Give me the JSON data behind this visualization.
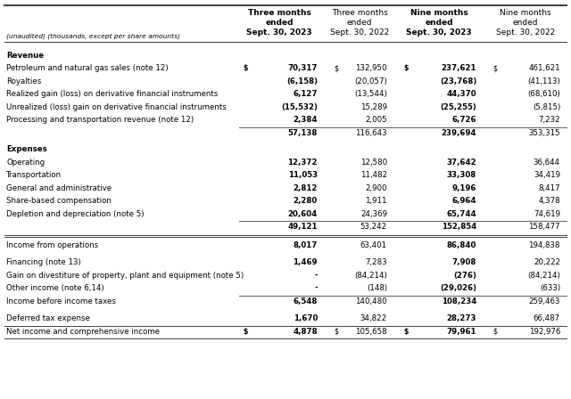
{
  "title_line1": "(unaudited) (thousands, except per share amounts)",
  "col_headers": [
    [
      "Three months",
      "ended",
      "Sept. 30, 2023"
    ],
    [
      "Three months",
      "ended",
      "Sept. 30, 2022"
    ],
    [
      "Nine months",
      "ended",
      "Sept. 30, 2023"
    ],
    [
      "Nine months",
      "ended",
      "Sept. 30, 2022"
    ]
  ],
  "col_bold": [
    true,
    false,
    true,
    false
  ],
  "rows": [
    {
      "type": "section",
      "label": "Revenue"
    },
    {
      "label": "Petroleum and natural gas sales (note 12)",
      "v": [
        "70,317",
        "132,950",
        "237,621",
        "461,621"
      ],
      "bold_v": [
        true,
        false,
        true,
        false
      ],
      "dollar": [
        true,
        true,
        true,
        true
      ]
    },
    {
      "label": "Royalties",
      "v": [
        "(6,158)",
        "(20,057)",
        "(23,768)",
        "(41,113)"
      ],
      "bold_v": [
        true,
        false,
        true,
        false
      ],
      "dollar": [
        false,
        false,
        false,
        false
      ]
    },
    {
      "label": "Realized gain (loss) on derivative financial instruments",
      "v": [
        "6,127",
        "(13,544)",
        "44,370",
        "(68,610)"
      ],
      "bold_v": [
        true,
        false,
        true,
        false
      ],
      "dollar": [
        false,
        false,
        false,
        false
      ]
    },
    {
      "label": "Unrealized (loss) gain on derivative financial instruments",
      "v": [
        "(15,532)",
        "15,289",
        "(25,255)",
        "(5,815)"
      ],
      "bold_v": [
        true,
        false,
        true,
        false
      ],
      "dollar": [
        false,
        false,
        false,
        false
      ]
    },
    {
      "label": "Processing and transportation revenue (note 12)",
      "v": [
        "2,384",
        "2,005",
        "6,726",
        "7,232"
      ],
      "bold_v": [
        true,
        false,
        true,
        false
      ],
      "dollar": [
        false,
        false,
        false,
        false
      ]
    },
    {
      "type": "subtotal",
      "label": "",
      "v": [
        "57,138",
        "116,643",
        "239,694",
        "353,315"
      ],
      "bold_v": [
        true,
        false,
        true,
        false
      ],
      "dollar": [
        false,
        false,
        false,
        false
      ]
    },
    {
      "type": "section",
      "label": "Expenses"
    },
    {
      "label": "Operating",
      "v": [
        "12,372",
        "12,580",
        "37,642",
        "36,644"
      ],
      "bold_v": [
        true,
        false,
        true,
        false
      ],
      "dollar": [
        false,
        false,
        false,
        false
      ]
    },
    {
      "label": "Transportation",
      "v": [
        "11,053",
        "11,482",
        "33,308",
        "34,419"
      ],
      "bold_v": [
        true,
        false,
        true,
        false
      ],
      "dollar": [
        false,
        false,
        false,
        false
      ]
    },
    {
      "label": "General and administrative",
      "v": [
        "2,812",
        "2,900",
        "9,196",
        "8,417"
      ],
      "bold_v": [
        true,
        false,
        true,
        false
      ],
      "dollar": [
        false,
        false,
        false,
        false
      ]
    },
    {
      "label": "Share-based compensation",
      "v": [
        "2,280",
        "1,911",
        "6,964",
        "4,378"
      ],
      "bold_v": [
        true,
        false,
        true,
        false
      ],
      "dollar": [
        false,
        false,
        false,
        false
      ]
    },
    {
      "label": "Depletion and depreciation (note 5)",
      "v": [
        "20,604",
        "24,369",
        "65,744",
        "74,619"
      ],
      "bold_v": [
        true,
        false,
        true,
        false
      ],
      "dollar": [
        false,
        false,
        false,
        false
      ]
    },
    {
      "type": "subtotal",
      "label": "",
      "v": [
        "49,121",
        "53,242",
        "152,854",
        "158,477"
      ],
      "bold_v": [
        true,
        false,
        true,
        false
      ],
      "dollar": [
        false,
        false,
        false,
        false
      ]
    },
    {
      "type": "thick_rule"
    },
    {
      "label": "Income from operations",
      "v": [
        "8,017",
        "63,401",
        "86,840",
        "194,838"
      ],
      "bold_v": [
        true,
        false,
        true,
        false
      ],
      "dollar": [
        false,
        false,
        false,
        false
      ]
    },
    {
      "type": "spacer"
    },
    {
      "label": "Financing (note 13)",
      "v": [
        "1,469",
        "7,283",
        "7,908",
        "20,222"
      ],
      "bold_v": [
        true,
        false,
        true,
        false
      ],
      "dollar": [
        false,
        false,
        false,
        false
      ]
    },
    {
      "label": "Gain on divestiture of property, plant and equipment (note 5)",
      "v": [
        "-",
        "(84,214)",
        "(276)",
        "(84,214)"
      ],
      "bold_v": [
        true,
        false,
        true,
        false
      ],
      "dollar": [
        false,
        false,
        false,
        false
      ]
    },
    {
      "label": "Other income (note 6,14)",
      "v": [
        "-",
        "(148)",
        "(29,026)",
        "(633)"
      ],
      "bold_v": [
        true,
        false,
        true,
        false
      ],
      "dollar": [
        false,
        false,
        false,
        false
      ]
    },
    {
      "type": "subtotal",
      "label": "Income before income taxes",
      "v": [
        "6,548",
        "140,480",
        "108,234",
        "259,463"
      ],
      "bold_v": [
        true,
        false,
        true,
        false
      ],
      "dollar": [
        false,
        false,
        false,
        false
      ],
      "show_label": true
    },
    {
      "type": "spacer"
    },
    {
      "label": "Deferred tax expense",
      "v": [
        "1,670",
        "34,822",
        "28,273",
        "66,487"
      ],
      "bold_v": [
        true,
        false,
        true,
        false
      ],
      "dollar": [
        false,
        false,
        false,
        false
      ]
    },
    {
      "type": "final",
      "label": "Net income and comprehensive income",
      "v": [
        "4,878",
        "105,658",
        "79,961",
        "192,976"
      ],
      "bold_v": [
        true,
        false,
        true,
        false
      ],
      "dollar": [
        true,
        true,
        true,
        true
      ]
    }
  ],
  "bg_color": "#ffffff",
  "text_color": "#000000",
  "line_color": "#444444"
}
